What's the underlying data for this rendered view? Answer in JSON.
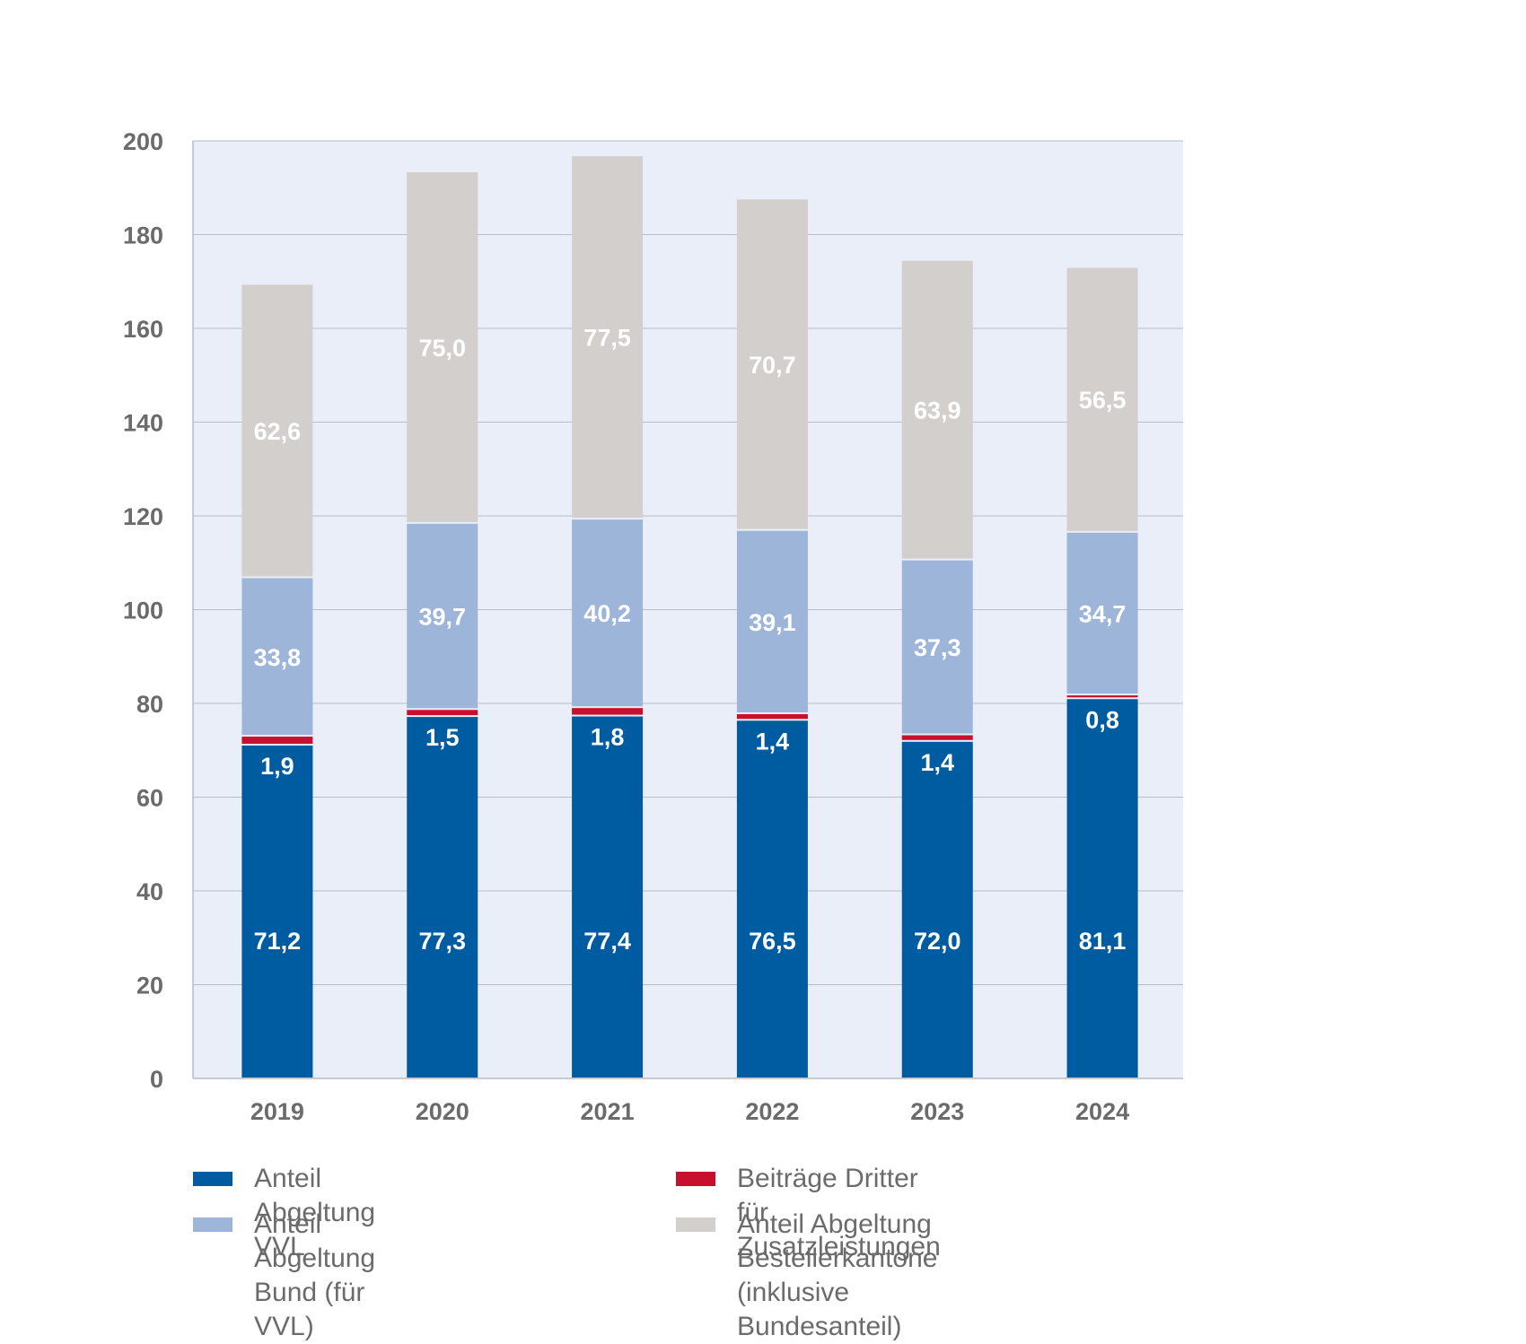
{
  "chart_data": {
    "type": "bar",
    "stacked": true,
    "categories": [
      "2019",
      "2020",
      "2021",
      "2022",
      "2023",
      "2024"
    ],
    "series": [
      {
        "name": "Anteil Abgeltung VVL",
        "color": "#005ca1",
        "values": [
          71.2,
          77.3,
          77.4,
          76.5,
          72.0,
          81.1
        ],
        "labels": [
          "71,2",
          "77,3",
          "77,4",
          "76,5",
          "72,0",
          "81,1"
        ]
      },
      {
        "name": "Beiträge Dritter für Zusatzleistungen",
        "color": "#c8102e",
        "values": [
          1.9,
          1.5,
          1.8,
          1.4,
          1.4,
          0.8
        ],
        "labels": [
          "1,9",
          "1,5",
          "1,8",
          "1,4",
          "1,4",
          "0,8"
        ]
      },
      {
        "name": "Anteil Abgeltung Bund (für VVL)",
        "color": "#9db5d9",
        "values": [
          33.8,
          39.7,
          40.2,
          39.1,
          37.3,
          34.7
        ],
        "labels": [
          "33,8",
          "39,7",
          "40,2",
          "39,1",
          "37,3",
          "34,7"
        ]
      },
      {
        "name": "Anteil Abgeltung Bestellerkantone\n(inklusive Bundesanteil)",
        "color": "#d3cfcc",
        "values": [
          62.6,
          75.0,
          77.5,
          70.7,
          63.9,
          56.5
        ],
        "labels": [
          "62,6",
          "75,0",
          "77,5",
          "70,7",
          "63,9",
          "56,5"
        ]
      }
    ],
    "yticks": [
      "0",
      "20",
      "40",
      "60",
      "80",
      "100",
      "120",
      "140",
      "160",
      "180",
      "200"
    ],
    "ylim": [
      0,
      200
    ],
    "grid": true,
    "plot_background": "#e9eef8",
    "legend_position": "bottom",
    "title": "",
    "xlabel": "",
    "ylabel": ""
  }
}
